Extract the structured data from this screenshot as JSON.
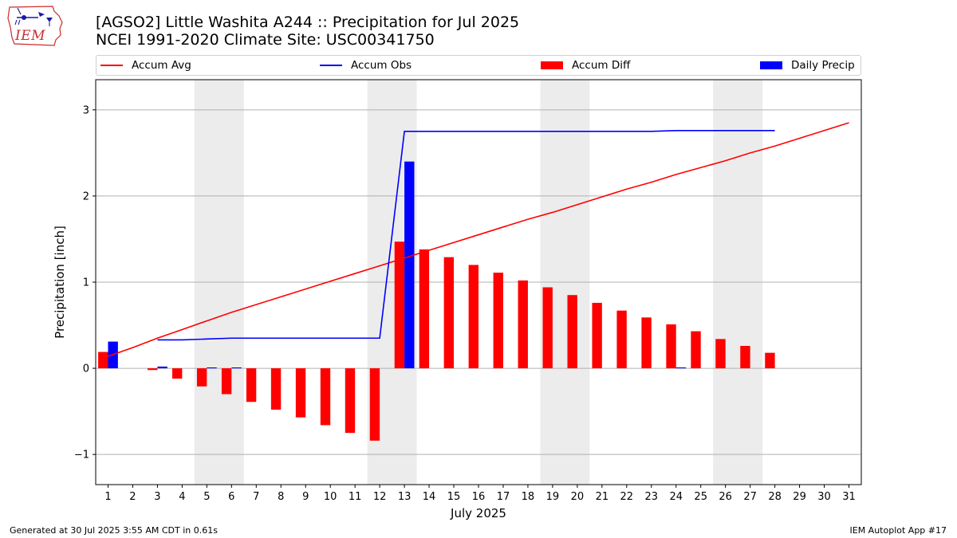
{
  "logo": {
    "text": "IEM",
    "icon": "iem-iowa-weather-logo"
  },
  "title": {
    "line1": "[AGSO2] Little Washita A244 :: Precipitation for Jul 2025",
    "line2": "NCEI 1991-2020 Climate Site: USC00341750"
  },
  "colors": {
    "avg": "#ff0000",
    "obs": "#0000ff",
    "diff": "#ff0000",
    "daily": "#0000ff",
    "weekend": "#ececec",
    "grid": "#b0b0b0"
  },
  "legend": [
    {
      "label": "Accum Avg",
      "kind": "line",
      "color": "#ff0000"
    },
    {
      "label": "Accum Obs",
      "kind": "line",
      "color": "#0000ff"
    },
    {
      "label": "Accum Diff",
      "kind": "patch",
      "color": "#ff0000"
    },
    {
      "label": "Daily Precip",
      "kind": "patch",
      "color": "#0000ff"
    }
  ],
  "chart_data": {
    "type": "bar",
    "xlabel": "July 2025",
    "ylabel": "Precipitation [inch]",
    "xlim": [
      0.5,
      31.5
    ],
    "ylim": [
      -1.35,
      3.35
    ],
    "yticks": [
      -1,
      0,
      1,
      2,
      3
    ],
    "ytick_labels": [
      "−1",
      "0",
      "1",
      "2",
      "3"
    ],
    "days": [
      1,
      2,
      3,
      4,
      5,
      6,
      7,
      8,
      9,
      10,
      11,
      12,
      13,
      14,
      15,
      16,
      17,
      18,
      19,
      20,
      21,
      22,
      23,
      24,
      25,
      26,
      27,
      28,
      29,
      30,
      31
    ],
    "x_tick_labels": [
      "1",
      "2",
      "3",
      "4",
      "5",
      "6",
      "7",
      "8",
      "9",
      "10",
      "11",
      "12",
      "13",
      "14",
      "15",
      "16",
      "17",
      "18",
      "19",
      "20",
      "21",
      "22",
      "23",
      "24",
      "25",
      "26",
      "27",
      "28",
      "29",
      "30",
      "31"
    ],
    "weekend_spans": [
      [
        4.5,
        6.5
      ],
      [
        11.5,
        13.5
      ],
      [
        18.5,
        20.5
      ],
      [
        25.5,
        27.5
      ]
    ],
    "grid": "y",
    "series": [
      {
        "name": "Accum Avg",
        "kind": "line",
        "x": [
          1,
          2,
          3,
          4,
          5,
          6,
          7,
          8,
          9,
          10,
          11,
          12,
          13,
          14,
          15,
          16,
          17,
          18,
          19,
          20,
          21,
          22,
          23,
          24,
          25,
          26,
          27,
          28,
          29,
          30,
          31
        ],
        "values": [
          0.14,
          0.24,
          0.35,
          0.45,
          0.55,
          0.65,
          0.74,
          0.83,
          0.92,
          1.01,
          1.1,
          1.19,
          1.28,
          1.37,
          1.46,
          1.55,
          1.64,
          1.73,
          1.81,
          1.9,
          1.99,
          2.08,
          2.16,
          2.25,
          2.33,
          2.41,
          2.5,
          2.58,
          2.67,
          2.76,
          2.85
        ]
      },
      {
        "name": "Accum Obs",
        "kind": "line",
        "x": [
          3,
          4,
          5,
          6,
          7,
          8,
          9,
          10,
          11,
          12,
          13,
          14,
          15,
          16,
          17,
          18,
          19,
          20,
          21,
          22,
          23,
          24,
          25,
          26,
          27,
          28
        ],
        "values": [
          0.33,
          0.33,
          0.34,
          0.35,
          0.35,
          0.35,
          0.35,
          0.35,
          0.35,
          0.35,
          2.75,
          2.75,
          2.75,
          2.75,
          2.75,
          2.75,
          2.75,
          2.75,
          2.75,
          2.75,
          2.75,
          2.76,
          2.76,
          2.76,
          2.76,
          2.76
        ]
      },
      {
        "name": "Accum Diff",
        "kind": "bar",
        "x": [
          1,
          2,
          3,
          4,
          5,
          6,
          7,
          8,
          9,
          10,
          11,
          12,
          13,
          14,
          15,
          16,
          17,
          18,
          19,
          20,
          21,
          22,
          23,
          24,
          25,
          26,
          27,
          28
        ],
        "values": [
          0.19,
          0.0,
          -0.02,
          -0.12,
          -0.21,
          -0.3,
          -0.39,
          -0.48,
          -0.57,
          -0.66,
          -0.75,
          -0.84,
          1.47,
          1.38,
          1.29,
          1.2,
          1.11,
          1.02,
          0.94,
          0.85,
          0.76,
          0.67,
          0.59,
          0.51,
          0.43,
          0.34,
          0.26,
          0.18
        ]
      },
      {
        "name": "Daily Precip",
        "kind": "bar",
        "x": [
          1,
          2,
          3,
          4,
          5,
          6,
          7,
          8,
          9,
          10,
          11,
          12,
          13,
          14,
          15,
          16,
          17,
          18,
          19,
          20,
          21,
          22,
          23,
          24,
          25,
          26,
          27,
          28
        ],
        "values": [
          0.31,
          0.0,
          0.02,
          0.0,
          0.01,
          0.01,
          0.0,
          0.0,
          0.0,
          0.0,
          0.0,
          0.0,
          2.4,
          0.0,
          0.0,
          0.0,
          0.0,
          0.0,
          0.0,
          0.0,
          0.0,
          0.0,
          0.0,
          0.01,
          0.0,
          0.0,
          0.0,
          0.0
        ]
      }
    ]
  },
  "footer": {
    "left": "Generated at 30 Jul 2025 3:55 AM CDT in 0.61s",
    "right": "IEM Autoplot App #17"
  }
}
